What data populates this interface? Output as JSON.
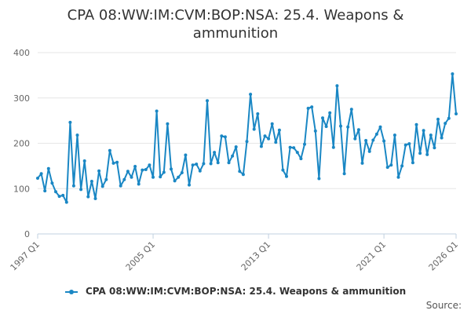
{
  "chart_data": {
    "type": "line",
    "title_lines": [
      "CPA 08:WW:IM:CVM:BOP:NSA: 25.4. Weapons &",
      "ammunition"
    ],
    "x_tick_labels": [
      "1997 Q1",
      "2005 Q1",
      "2013 Q1",
      "2021 Q1",
      "2026 Q1"
    ],
    "y_tick_labels": [
      "0",
      "100",
      "200",
      "300",
      "400"
    ],
    "ylim": [
      0,
      400
    ],
    "xlim": [
      "1997 Q1",
      "2026 Q1"
    ],
    "grid": "horizontal",
    "legend_position": "bottom",
    "color": "#1a87c4",
    "series": [
      {
        "name": "CPA 08:WW:IM:CVM:BOP:NSA: 25.4. Weapons & ammunition",
        "x_start": "1997 Q1",
        "frequency": "quarterly",
        "values": [
          123,
          133,
          95,
          144,
          112,
          93,
          83,
          85,
          70,
          246,
          106,
          218,
          98,
          161,
          82,
          116,
          78,
          139,
          105,
          120,
          184,
          156,
          158,
          106,
          120,
          138,
          125,
          149,
          110,
          141,
          142,
          152,
          125,
          271,
          126,
          136,
          243,
          143,
          117,
          125,
          135,
          174,
          108,
          152,
          154,
          139,
          155,
          294,
          155,
          180,
          157,
          216,
          214,
          157,
          172,
          192,
          138,
          131,
          204,
          308,
          231,
          265,
          193,
          216,
          210,
          243,
          202,
          229,
          141,
          127,
          191,
          190,
          180,
          166,
          198,
          277,
          280,
          227,
          122,
          256,
          237,
          267,
          191,
          327,
          238,
          133,
          236,
          275,
          210,
          230,
          156,
          206,
          182,
          207,
          220,
          236,
          205,
          147,
          152,
          218,
          125,
          150,
          196,
          199,
          157,
          241,
          178,
          228,
          175,
          218,
          190,
          253,
          212,
          244,
          255,
          353,
          265
        ]
      }
    ],
    "legend_label": "CPA 08:WW:IM:CVM:BOP:NSA: 25.4. Weapons & ammunition",
    "source_label": "Source:"
  }
}
